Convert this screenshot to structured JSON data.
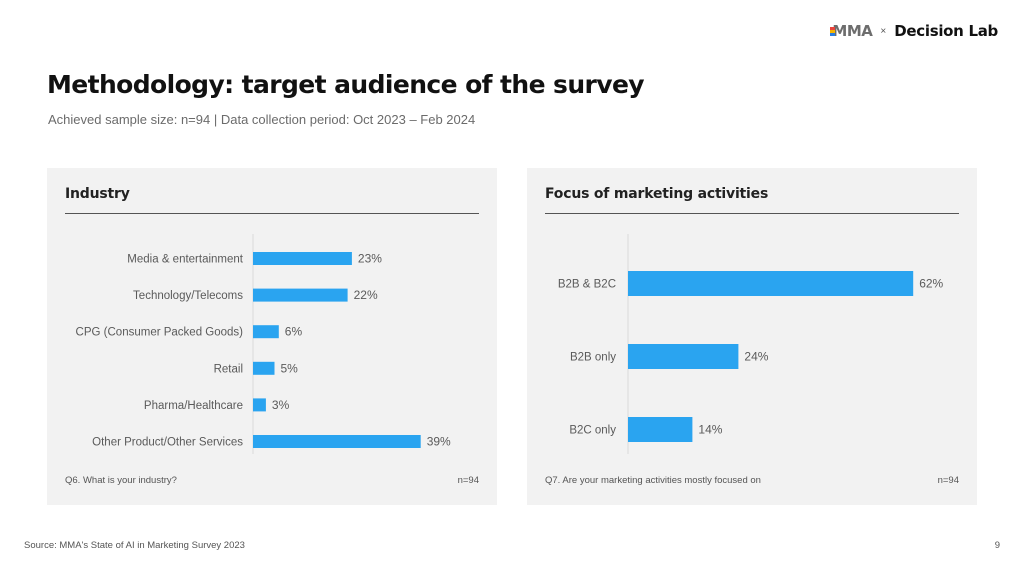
{
  "header": {
    "logo_mma": "MMA",
    "logo_sep": "×",
    "logo_partner": "Decision Lab"
  },
  "title": "Methodology: target audience of the survey",
  "subtitle": "Achieved sample size: n=94 | Data collection period: Oct 2023 – Feb 2024",
  "colors": {
    "bar": "#2aa4f0",
    "panel_bg": "#f2f2f2",
    "axis": "#d9d9d9"
  },
  "chart_data": [
    {
      "type": "bar",
      "orientation": "horizontal",
      "title": "Industry",
      "categories": [
        "Media & entertainment",
        "Technology/Telecoms",
        "CPG (Consumer Packed Goods)",
        "Retail",
        "Pharma/Healthcare",
        "Other Product/Other Services"
      ],
      "values": [
        23,
        22,
        6,
        5,
        3,
        39
      ],
      "value_labels": [
        "23%",
        "22%",
        "6%",
        "5%",
        "3%",
        "39%"
      ],
      "unit": "%",
      "xlim": [
        0,
        100
      ],
      "grid": false,
      "legend": "none",
      "question": "Q6. What is your industry?",
      "n": "n=94"
    },
    {
      "type": "bar",
      "orientation": "horizontal",
      "title": "Focus of marketing activities",
      "categories": [
        "B2B & B2C",
        "B2B only",
        "B2C only"
      ],
      "values": [
        62,
        24,
        14
      ],
      "value_labels": [
        "62%",
        "24%",
        "14%"
      ],
      "unit": "%",
      "xlim": [
        0,
        100
      ],
      "grid": false,
      "legend": "none",
      "question": "Q7. Are your marketing activities mostly focused on",
      "n": "n=94"
    }
  ],
  "footer": {
    "source": "Source: MMA's State of AI in Marketing Survey 2023",
    "page": "9"
  }
}
